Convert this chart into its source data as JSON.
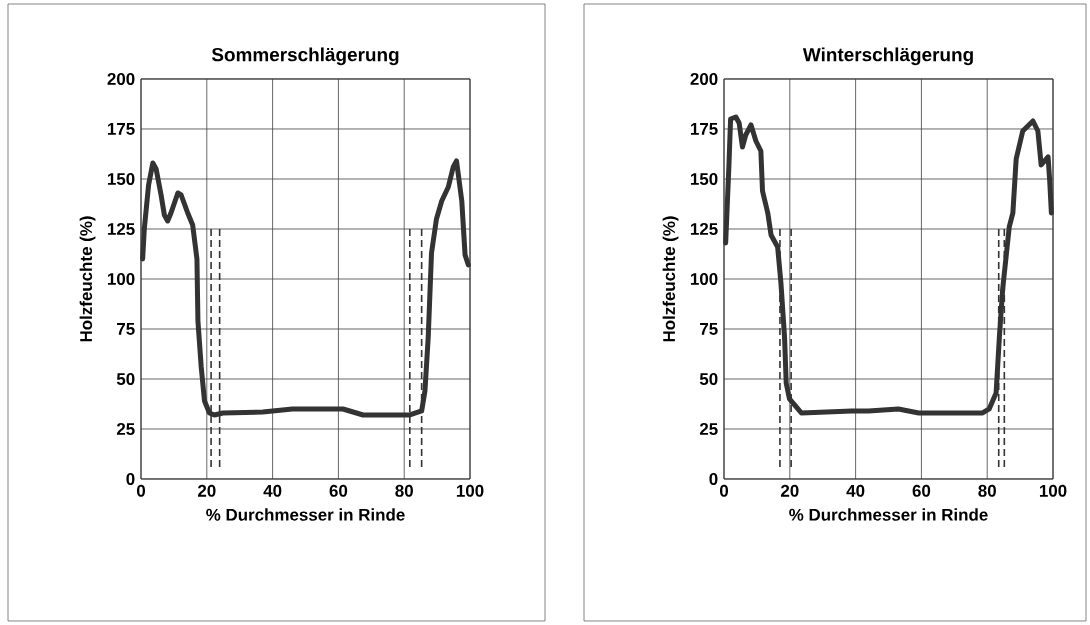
{
  "chart_data": [
    {
      "type": "line",
      "title": "Sommerschlägerung",
      "xlabel": "% Durchmesser in Rinde",
      "ylabel": "Holzfeuchte (%)",
      "x": [
        0.5,
        1,
        2.3,
        3.6,
        4.6,
        6.1,
        7.1,
        8.1,
        9.1,
        11.2,
        12.2,
        14.2,
        15.7,
        17,
        17.3,
        18.3,
        19.3,
        20.8,
        22.3,
        24.9,
        37,
        46,
        61.4,
        67.5,
        81.7,
        85.3,
        86.3,
        87.3,
        88.3,
        89.8,
        91.4,
        93.4,
        94.9,
        95.9,
        97.5,
        98.5,
        99.5
      ],
      "series": [
        {
          "color": "#333333",
          "values": [
            110,
            125,
            147,
            158,
            155,
            142,
            132,
            129,
            133,
            143,
            142,
            133,
            127,
            110,
            79,
            56,
            39,
            33,
            32,
            33,
            33.5,
            35,
            35,
            32,
            32,
            34,
            44,
            71,
            113,
            130,
            139,
            146,
            156,
            159,
            139,
            112,
            107
          ]
        }
      ],
      "xlim": [
        0,
        100
      ],
      "ylim": [
        0,
        200
      ],
      "xticks": [
        0,
        20,
        40,
        60,
        80,
        100
      ],
      "yticks": [
        0,
        25,
        50,
        75,
        100,
        125,
        150,
        175,
        200
      ],
      "grid": true,
      "marker": "none",
      "line_style": "solid",
      "ref_lines": [
        {
          "axis": "x",
          "value": 21.3,
          "line_style": "dashed",
          "color": "#333333"
        },
        {
          "axis": "x",
          "value": 23.9,
          "line_style": "dashed",
          "color": "#333333"
        },
        {
          "axis": "x",
          "value": 81.7,
          "line_style": "dashed",
          "color": "#333333"
        },
        {
          "axis": "x",
          "value": 85.3,
          "line_style": "dashed",
          "color": "#333333"
        }
      ]
    },
    {
      "type": "line",
      "title": "Winterschlägerung",
      "xlabel": "% Durchmesser in Rinde",
      "ylabel": "Holzfeuchte (%)",
      "x": [
        0.5,
        1.5,
        2,
        3.6,
        4.6,
        5.6,
        6.6,
        8.2,
        9.7,
        11.2,
        11.7,
        13.3,
        14.3,
        16.3,
        17.3,
        18.4,
        18.9,
        19.9,
        23.5,
        38.8,
        43.9,
        53,
        59.2,
        78.6,
        80.6,
        82.7,
        83.7,
        84.7,
        86.7,
        87.8,
        88.8,
        90.8,
        93.9,
        95.4,
        96.4,
        98.5,
        99,
        99.5
      ],
      "series": [
        {
          "color": "#333333",
          "values": [
            118,
            157,
            180,
            181,
            178,
            166,
            172,
            177,
            169,
            164,
            144,
            133,
            122,
            116,
            98,
            71,
            48,
            40,
            33,
            34,
            34,
            35,
            33,
            33,
            35,
            43,
            71,
            95,
            126,
            133,
            160,
            174,
            179,
            174,
            157,
            161,
            149,
            133
          ]
        }
      ],
      "xlim": [
        0,
        100
      ],
      "ylim": [
        0,
        200
      ],
      "xticks": [
        0,
        20,
        40,
        60,
        80,
        100
      ],
      "yticks": [
        0,
        25,
        50,
        75,
        100,
        125,
        150,
        175,
        200
      ],
      "grid": true,
      "marker": "none",
      "line_style": "solid",
      "ref_lines": [
        {
          "axis": "x",
          "value": 17,
          "line_style": "dashed",
          "color": "#333333"
        },
        {
          "axis": "x",
          "value": 20.4,
          "line_style": "dashed",
          "color": "#333333"
        },
        {
          "axis": "x",
          "value": 83.5,
          "line_style": "dashed",
          "color": "#333333"
        },
        {
          "axis": "x",
          "value": 85.2,
          "line_style": "dashed",
          "color": "#333333"
        }
      ]
    }
  ]
}
